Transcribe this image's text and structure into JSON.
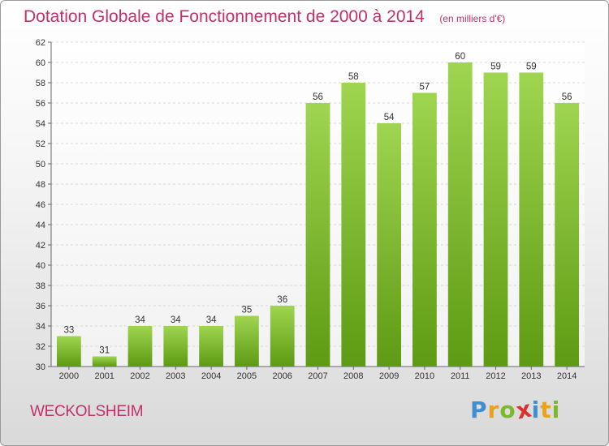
{
  "header": {
    "title": "Dotation Globale de Fonctionnement de 2000 à 2014",
    "subtitle": "(en milliers d'€)"
  },
  "commune": "WECKOLSHEIM",
  "logo": {
    "text": "Proxiti",
    "letters": [
      "P",
      "r",
      "o",
      "x",
      "i",
      "t",
      "i"
    ],
    "colors": [
      "#3f8fd0",
      "#e9a21a",
      "#7bb82e",
      "#d9332f",
      "#3f8fd0",
      "#e9a21a",
      "#7bb82e"
    ]
  },
  "chart_data": {
    "type": "bar",
    "categories": [
      "2000",
      "2001",
      "2002",
      "2003",
      "2004",
      "2005",
      "2006",
      "2007",
      "2008",
      "2009",
      "2010",
      "2011",
      "2012",
      "2013",
      "2014"
    ],
    "values": [
      33,
      31,
      34,
      34,
      34,
      35,
      36,
      56,
      58,
      54,
      57,
      60,
      59,
      59,
      56
    ],
    "ylim": [
      30,
      62
    ],
    "yticks": [
      30,
      32,
      34,
      36,
      38,
      40,
      42,
      44,
      46,
      48,
      50,
      52,
      54,
      56,
      58,
      60,
      62
    ],
    "grid": true,
    "bar_color": "#7cb82a",
    "title": "Dotation Globale de Fonctionnement de 2000 à 2014",
    "subtitle": "(en milliers d'€)",
    "xlabel": "",
    "ylabel": ""
  }
}
